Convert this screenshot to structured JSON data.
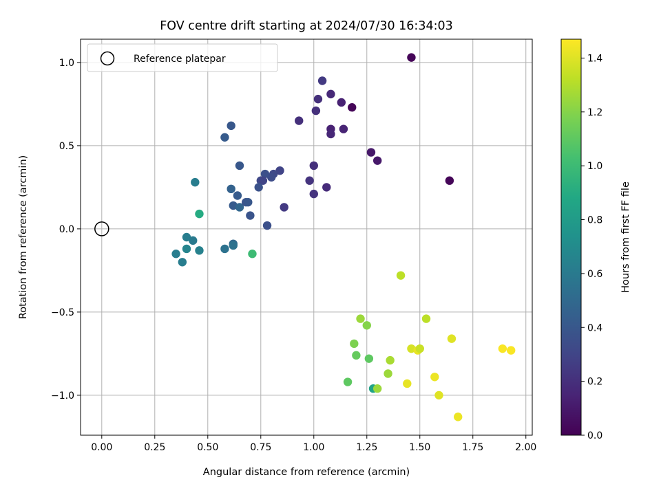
{
  "chart_data": {
    "type": "scatter",
    "title": "FOV centre drift starting at 2024/07/30 16:34:03",
    "xlabel": "Angular distance from reference (arcmin)",
    "ylabel": "Rotation from reference (arcmin)",
    "xlim": [
      -0.1,
      2.03
    ],
    "ylim": [
      -1.24,
      1.14
    ],
    "xticks": [
      0.0,
      0.25,
      0.5,
      0.75,
      1.0,
      1.25,
      1.5,
      1.75,
      2.0
    ],
    "xtick_labels": [
      "0.00",
      "0.25",
      "0.50",
      "0.75",
      "1.00",
      "1.25",
      "1.50",
      "1.75",
      "2.00"
    ],
    "yticks": [
      -1.0,
      -0.5,
      0.0,
      0.5,
      1.0
    ],
    "ytick_labels": [
      "−1.0",
      "−0.5",
      "0.0",
      "0.5",
      "1.0"
    ],
    "grid": true,
    "legend": {
      "placement": "top-left",
      "label": "Reference platepar"
    },
    "reference_point": {
      "x": 0.0,
      "y": 0.0
    },
    "colorbar": {
      "label": "Hours from first FF file",
      "colormap": "viridis",
      "range": [
        0.0,
        1.47
      ],
      "ticks": [
        0.0,
        0.2,
        0.4,
        0.6,
        0.8,
        1.0,
        1.2,
        1.4
      ],
      "tick_labels": [
        "0.0",
        "0.2",
        "0.4",
        "0.6",
        "0.8",
        "1.0",
        "1.2",
        "1.4"
      ]
    },
    "points": [
      {
        "x": 1.46,
        "y": 1.03,
        "c": 0.02
      },
      {
        "x": 1.18,
        "y": 0.73,
        "c": 0.02
      },
      {
        "x": 1.64,
        "y": 0.29,
        "c": 0.02
      },
      {
        "x": 1.27,
        "y": 0.46,
        "c": 0.1
      },
      {
        "x": 1.3,
        "y": 0.41,
        "c": 0.1
      },
      {
        "x": 1.13,
        "y": 0.76,
        "c": 0.14
      },
      {
        "x": 1.08,
        "y": 0.81,
        "c": 0.17
      },
      {
        "x": 1.08,
        "y": 0.6,
        "c": 0.14
      },
      {
        "x": 1.08,
        "y": 0.57,
        "c": 0.16
      },
      {
        "x": 1.14,
        "y": 0.6,
        "c": 0.15
      },
      {
        "x": 1.04,
        "y": 0.89,
        "c": 0.25
      },
      {
        "x": 1.02,
        "y": 0.78,
        "c": 0.2
      },
      {
        "x": 1.01,
        "y": 0.71,
        "c": 0.2
      },
      {
        "x": 0.93,
        "y": 0.65,
        "c": 0.2
      },
      {
        "x": 1.0,
        "y": 0.38,
        "c": 0.2
      },
      {
        "x": 0.98,
        "y": 0.29,
        "c": 0.22
      },
      {
        "x": 1.06,
        "y": 0.25,
        "c": 0.18
      },
      {
        "x": 1.0,
        "y": 0.21,
        "c": 0.22
      },
      {
        "x": 0.86,
        "y": 0.13,
        "c": 0.25
      },
      {
        "x": 0.84,
        "y": 0.35,
        "c": 0.3
      },
      {
        "x": 0.81,
        "y": 0.33,
        "c": 0.32
      },
      {
        "x": 0.8,
        "y": 0.31,
        "c": 0.34
      },
      {
        "x": 0.77,
        "y": 0.33,
        "c": 0.36
      },
      {
        "x": 0.75,
        "y": 0.29,
        "c": 0.32
      },
      {
        "x": 0.76,
        "y": 0.29,
        "c": 0.3
      },
      {
        "x": 0.74,
        "y": 0.25,
        "c": 0.37
      },
      {
        "x": 0.78,
        "y": 0.02,
        "c": 0.36
      },
      {
        "x": 0.65,
        "y": 0.38,
        "c": 0.4
      },
      {
        "x": 0.61,
        "y": 0.62,
        "c": 0.4
      },
      {
        "x": 0.58,
        "y": 0.55,
        "c": 0.42
      },
      {
        "x": 0.61,
        "y": 0.24,
        "c": 0.46
      },
      {
        "x": 0.64,
        "y": 0.2,
        "c": 0.42
      },
      {
        "x": 0.62,
        "y": 0.14,
        "c": 0.42
      },
      {
        "x": 0.65,
        "y": 0.13,
        "c": 0.48
      },
      {
        "x": 0.68,
        "y": 0.16,
        "c": 0.38
      },
      {
        "x": 0.69,
        "y": 0.16,
        "c": 0.4
      },
      {
        "x": 0.7,
        "y": 0.08,
        "c": 0.38
      },
      {
        "x": 0.62,
        "y": -0.09,
        "c": 0.5
      },
      {
        "x": 0.62,
        "y": -0.1,
        "c": 0.55
      },
      {
        "x": 0.58,
        "y": -0.12,
        "c": 0.55
      },
      {
        "x": 0.44,
        "y": 0.28,
        "c": 0.62
      },
      {
        "x": 0.4,
        "y": -0.05,
        "c": 0.62
      },
      {
        "x": 0.43,
        "y": -0.07,
        "c": 0.6
      },
      {
        "x": 0.4,
        "y": -0.12,
        "c": 0.66
      },
      {
        "x": 0.46,
        "y": -0.13,
        "c": 0.64
      },
      {
        "x": 0.35,
        "y": -0.15,
        "c": 0.62
      },
      {
        "x": 0.38,
        "y": -0.2,
        "c": 0.62
      },
      {
        "x": 0.46,
        "y": 0.09,
        "c": 0.9
      },
      {
        "x": 0.71,
        "y": -0.15,
        "c": 1.0
      },
      {
        "x": 1.16,
        "y": -0.92,
        "c": 1.1
      },
      {
        "x": 1.28,
        "y": -0.96,
        "c": 0.85
      },
      {
        "x": 1.2,
        "y": -0.76,
        "c": 1.12
      },
      {
        "x": 1.26,
        "y": -0.78,
        "c": 1.1
      },
      {
        "x": 1.19,
        "y": -0.69,
        "c": 1.18
      },
      {
        "x": 1.22,
        "y": -0.54,
        "c": 1.25
      },
      {
        "x": 1.25,
        "y": -0.58,
        "c": 1.2
      },
      {
        "x": 1.3,
        "y": -0.96,
        "c": 1.25
      },
      {
        "x": 1.35,
        "y": -0.87,
        "c": 1.25
      },
      {
        "x": 1.36,
        "y": -0.79,
        "c": 1.28
      },
      {
        "x": 1.41,
        "y": -0.28,
        "c": 1.32
      },
      {
        "x": 1.44,
        "y": -0.93,
        "c": 1.42
      },
      {
        "x": 1.46,
        "y": -0.72,
        "c": 1.38
      },
      {
        "x": 1.49,
        "y": -0.73,
        "c": 1.42
      },
      {
        "x": 1.5,
        "y": -0.72,
        "c": 1.35
      },
      {
        "x": 1.53,
        "y": -0.54,
        "c": 1.32
      },
      {
        "x": 1.57,
        "y": -0.89,
        "c": 1.43
      },
      {
        "x": 1.59,
        "y": -1.0,
        "c": 1.4
      },
      {
        "x": 1.65,
        "y": -0.66,
        "c": 1.4
      },
      {
        "x": 1.68,
        "y": -1.13,
        "c": 1.43
      },
      {
        "x": 1.89,
        "y": -0.72,
        "c": 1.46
      },
      {
        "x": 1.93,
        "y": -0.73,
        "c": 1.46
      }
    ]
  }
}
